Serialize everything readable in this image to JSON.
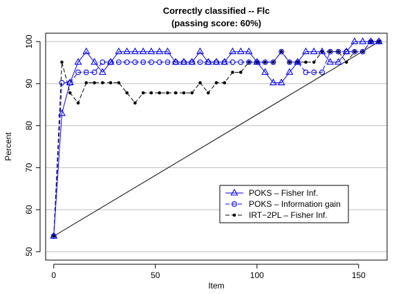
{
  "chart_data": {
    "type": "line",
    "title": "Correctly classified -- Flc",
    "subtitle": "(passing score: 60%)",
    "xlabel": "Item",
    "ylabel": "Percent",
    "xlim": [
      -4,
      164
    ],
    "ylim": [
      48,
      102
    ],
    "xticks": [
      0,
      50,
      100,
      150
    ],
    "yticks": [
      50,
      60,
      70,
      80,
      90,
      100
    ],
    "grid": "horizontal",
    "legend_position": "lower-right",
    "series": [
      {
        "name": "POKS – Fisher Inf.",
        "color": "#0000ff",
        "marker": "triangle",
        "line": "solid",
        "x": [
          0,
          4,
          8,
          12,
          16,
          20,
          24,
          28,
          32,
          36,
          40,
          44,
          48,
          52,
          56,
          60,
          64,
          68,
          72,
          76,
          80,
          84,
          88,
          92,
          96,
          100,
          104,
          108,
          112,
          116,
          120,
          124,
          128,
          132,
          136,
          140,
          144,
          148,
          152,
          156,
          160
        ],
        "y": [
          53.7,
          82.9,
          90.2,
          95.1,
          97.6,
          95.1,
          92.7,
          95.1,
          97.6,
          97.6,
          97.6,
          97.6,
          97.6,
          97.6,
          97.6,
          95.1,
          95.1,
          95.1,
          97.6,
          95.1,
          95.1,
          95.1,
          97.6,
          97.6,
          97.6,
          95.1,
          92.7,
          90.2,
          90.2,
          92.7,
          95.1,
          97.6,
          97.6,
          97.6,
          95.1,
          95.1,
          97.6,
          100,
          100,
          100,
          100
        ]
      },
      {
        "name": "POKS – Information gain",
        "color": "#0000ff",
        "marker": "circle",
        "line": "dashed",
        "x": [
          0,
          4,
          8,
          12,
          16,
          20,
          24,
          28,
          32,
          36,
          40,
          44,
          48,
          52,
          56,
          60,
          64,
          68,
          72,
          76,
          80,
          84,
          88,
          92,
          96,
          100,
          104,
          108,
          112,
          116,
          120,
          124,
          128,
          132,
          136,
          140,
          144,
          148,
          152,
          156,
          160
        ],
        "y": [
          53.7,
          90.2,
          90.2,
          92.7,
          92.7,
          92.7,
          95.1,
          95.1,
          95.1,
          95.1,
          95.1,
          95.1,
          95.1,
          95.1,
          95.1,
          95.1,
          95.1,
          95.1,
          95.1,
          95.1,
          95.1,
          95.1,
          95.1,
          95.1,
          95.1,
          95.1,
          95.1,
          95.1,
          97.6,
          95.1,
          95.1,
          92.7,
          92.7,
          92.7,
          97.6,
          97.6,
          97.6,
          97.6,
          97.6,
          100,
          100
        ]
      },
      {
        "name": "IRT−2PL – Fisher Inf.",
        "color": "#000000",
        "marker": "dot",
        "line": "dashed",
        "x": [
          0,
          4,
          8,
          12,
          16,
          20,
          24,
          28,
          32,
          36,
          40,
          44,
          48,
          52,
          56,
          60,
          64,
          68,
          72,
          76,
          80,
          84,
          88,
          92,
          96,
          100,
          104,
          108,
          112,
          116,
          120,
          124,
          128,
          132,
          136,
          140,
          144,
          148,
          152,
          156,
          160
        ],
        "y": [
          53.7,
          95.1,
          87.8,
          85.4,
          90.2,
          90.2,
          90.2,
          90.2,
          90.2,
          87.8,
          85.4,
          87.8,
          87.8,
          87.8,
          87.8,
          87.8,
          87.8,
          87.8,
          90.2,
          87.8,
          90.2,
          90.2,
          92.7,
          92.7,
          95.1,
          95.1,
          95.1,
          95.1,
          97.6,
          95.1,
          95.1,
          95.1,
          95.1,
          97.6,
          97.6,
          97.6,
          95.1,
          97.6,
          97.6,
          100,
          100
        ]
      },
      {
        "name": "",
        "color": "#000000",
        "marker": "none",
        "line": "solid",
        "x": [
          0,
          160
        ],
        "y": [
          53.7,
          100
        ]
      }
    ],
    "legend": [
      {
        "label": "POKS – Fisher Inf.",
        "marker": "triangle",
        "color": "#0000ff",
        "line": "solid"
      },
      {
        "label": "POKS – Information gain",
        "marker": "circle",
        "color": "#0000ff",
        "line": "dashed"
      },
      {
        "label": "IRT−2PL – Fisher Inf.",
        "marker": "dot",
        "color": "#000000",
        "line": "dashed"
      }
    ]
  }
}
